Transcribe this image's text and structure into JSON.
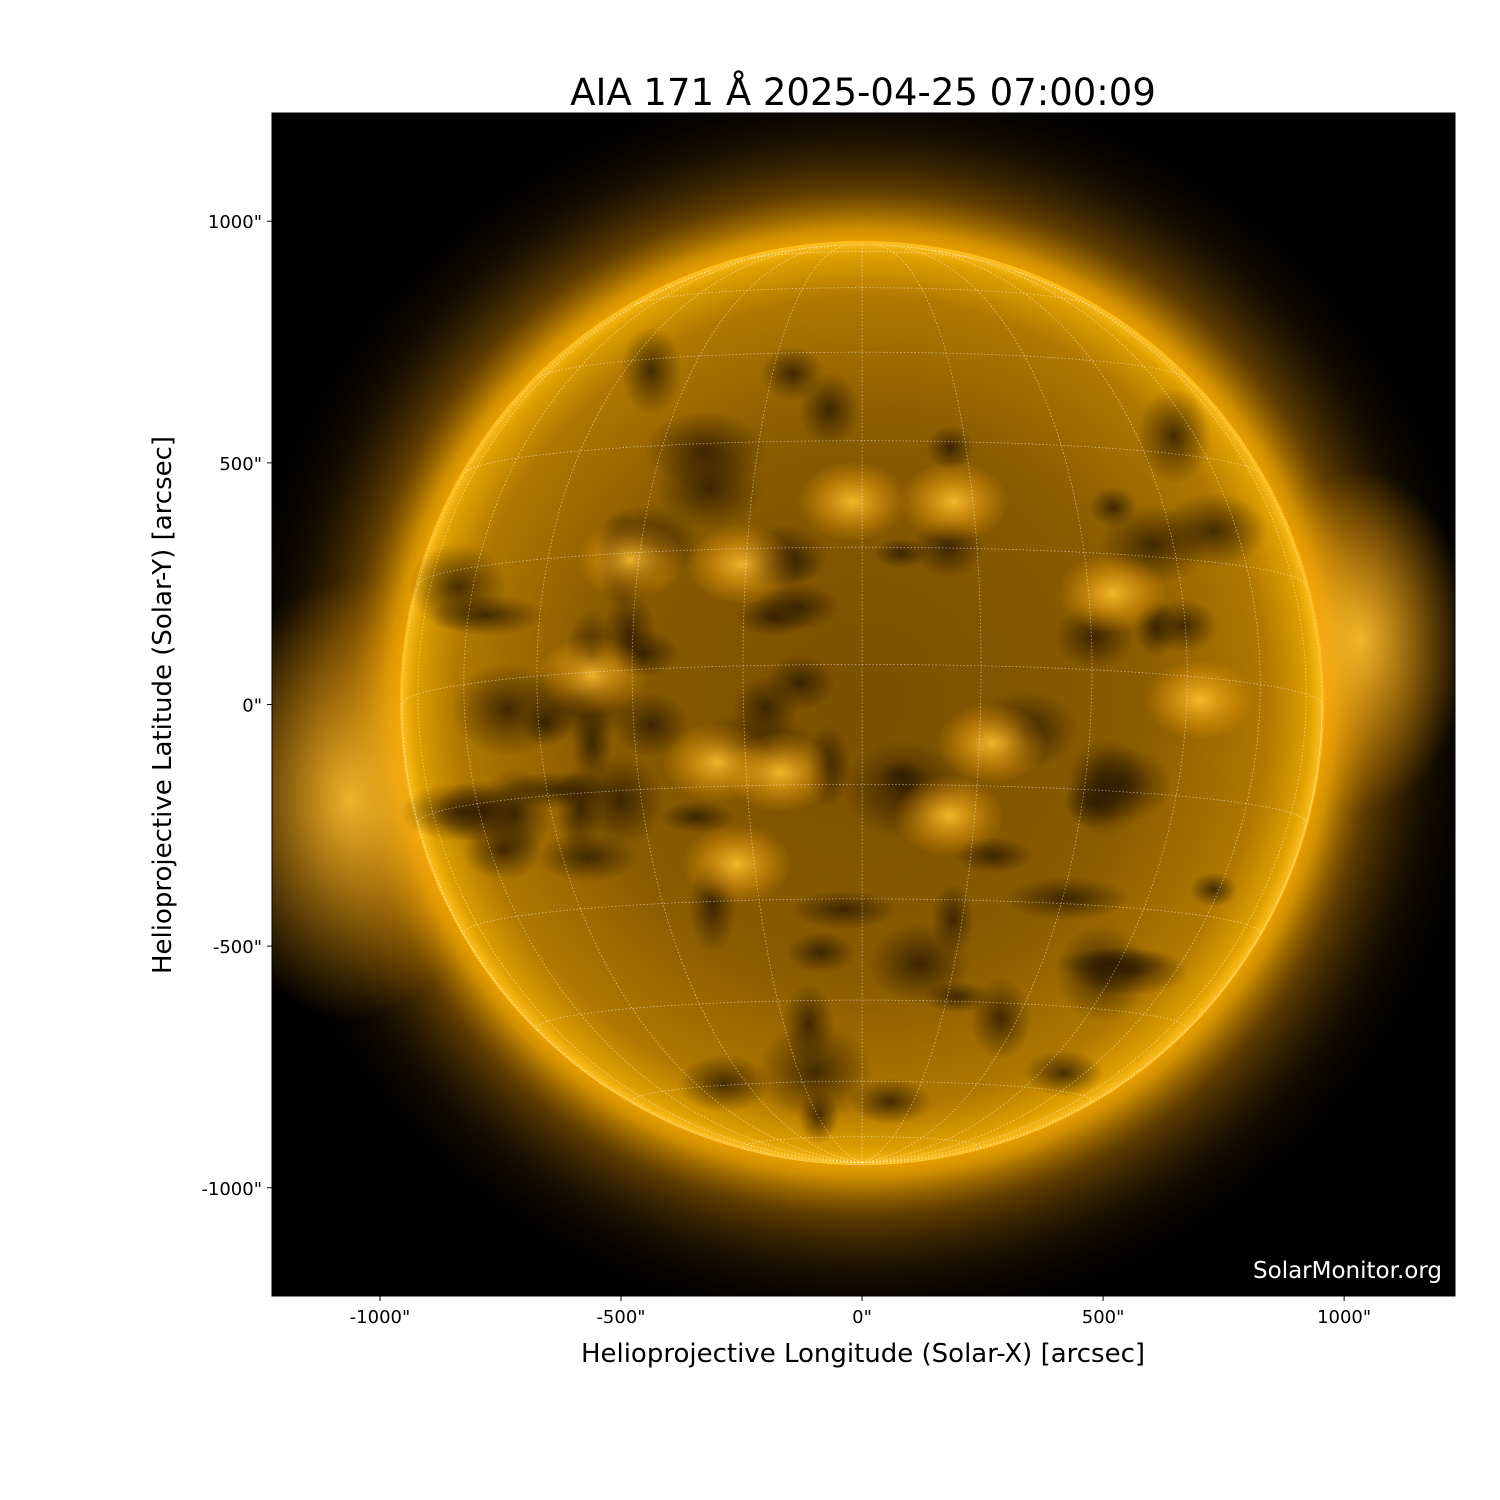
{
  "chart_data": {
    "type": "image",
    "title": "AIA 171 Å 2025-04-25 07:00:09",
    "xlabel": "Helioprojective Longitude (Solar-X) [arcsec]",
    "ylabel": "Helioprojective Latitude (Solar-Y) [arcsec]",
    "xlim": [
      -1224,
      1230
    ],
    "ylim": [
      -1224,
      1224
    ],
    "xticks": [
      -1000,
      -500,
      0,
      500,
      1000
    ],
    "xtick_labels": [
      "-1000\"",
      "-500\"",
      "0\"",
      "500\"",
      "1000\""
    ],
    "yticks": [
      1000,
      500,
      0,
      -500,
      -1000
    ],
    "ytick_labels": [
      "1000\"",
      "500\"",
      "0\"",
      "-500\"",
      "-1000\""
    ],
    "solar_radius_arcsec": 954,
    "grid": "heliographic lat/lon every 15°, dotted white",
    "colormap": "sdoaia171",
    "colors": {
      "background": "#000000",
      "disk": "#b07800",
      "corona": "#ffb000",
      "limb": "#ffc020"
    },
    "watermark": "SolarMonitor.org"
  }
}
